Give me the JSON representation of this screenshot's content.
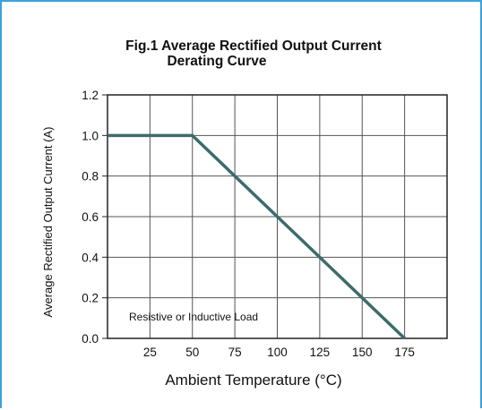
{
  "chart_data": {
    "type": "line",
    "title": [
      "Fig.1 Average Rectified Output Current",
      "Derating Curve"
    ],
    "xlabel": "Ambient Temperature (°C)",
    "ylabel": "Average Rectified Output Current (A)",
    "xlim": [
      0,
      200
    ],
    "ylim": [
      0,
      1.2
    ],
    "x_ticks": [
      25,
      50,
      75,
      100,
      125,
      150,
      175
    ],
    "x_tick_labels": [
      "25",
      "50",
      "75",
      "100",
      "125",
      "150",
      "175"
    ],
    "y_ticks": [
      0,
      0.2,
      0.4,
      0.6,
      0.8,
      1.0,
      1.2
    ],
    "y_tick_labels": [
      "0.0",
      "0.2",
      "0.4",
      "0.6",
      "0.8",
      "1.0",
      "1.2"
    ],
    "grid": true,
    "annotation": "Resistive or Inductive Load",
    "series": [
      {
        "x": [
          0,
          50,
          175
        ],
        "y": [
          1.0,
          1.0,
          0.0
        ],
        "color": "#3d6b6b"
      }
    ]
  }
}
